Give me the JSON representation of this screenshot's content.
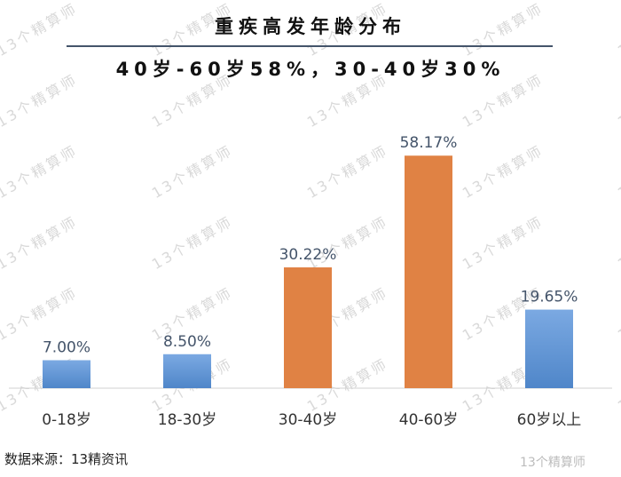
{
  "watermark_text": "13个精算师",
  "header": {
    "title": "重疾高发年龄分布",
    "subtitle": "40岁-60岁58%，30-40岁30%"
  },
  "chart_data": {
    "type": "bar",
    "title": "重疾高发年龄分布",
    "subtitle": "40岁-60岁58%，30-40岁30%",
    "categories": [
      "0-18岁",
      "18-30岁",
      "30-40岁",
      "40-60岁",
      "60岁以上"
    ],
    "values": [
      7.0,
      8.5,
      30.22,
      58.17,
      19.65
    ],
    "data_labels": [
      "7.00%",
      "8.50%",
      "30.22%",
      "58.17%",
      "19.65%"
    ],
    "highlight": [
      false,
      false,
      true,
      true,
      false
    ],
    "colors": {
      "normal": "#6f9fd8",
      "highlight": "#e08244",
      "label": "#44546a"
    },
    "xlabel": "",
    "ylabel": "",
    "ylim": [
      0,
      60
    ],
    "grid": false,
    "legend": "none"
  },
  "footer": {
    "source": "数据来源：13精资讯",
    "weibo": "13个精算师"
  }
}
